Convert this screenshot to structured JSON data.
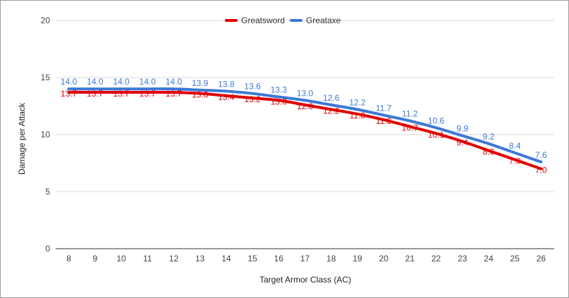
{
  "chart_data": {
    "type": "line",
    "title": "",
    "xlabel": "Target Armor Class (AC)",
    "ylabel": "Damage per Attack",
    "x": [
      8,
      9,
      10,
      11,
      12,
      13,
      14,
      15,
      16,
      17,
      18,
      19,
      20,
      21,
      22,
      23,
      24,
      25,
      26
    ],
    "xlim": [
      7.5,
      26.5
    ],
    "ylim": [
      0,
      20
    ],
    "yticks": [
      0,
      5,
      10,
      15,
      20
    ],
    "grid": true,
    "legend_position": "top-center",
    "series": [
      {
        "name": "Greatsword",
        "color": "#e00000",
        "values": [
          13.7,
          13.7,
          13.7,
          13.7,
          13.7,
          13.6,
          13.4,
          13.2,
          13.0,
          12.6,
          12.2,
          11.8,
          11.3,
          10.7,
          10.1,
          9.4,
          8.6,
          7.8,
          7.0
        ],
        "labels": [
          "13.7",
          "13.7",
          "13.7",
          "13.7",
          "13.7",
          "13.6",
          "13.4",
          "13.2",
          "13.0",
          "12.6",
          "12.2",
          "11.8",
          "11.3",
          "10.7",
          "10.1",
          "9.4",
          "8.6",
          "7.8",
          "7.0"
        ]
      },
      {
        "name": "Greataxe",
        "color": "#3c78d8",
        "values": [
          14.0,
          14.0,
          14.0,
          14.0,
          14.0,
          13.9,
          13.8,
          13.6,
          13.3,
          13.0,
          12.6,
          12.2,
          11.7,
          11.2,
          10.6,
          9.9,
          9.2,
          8.4,
          7.6
        ],
        "labels": [
          "14.0",
          "14.0",
          "14.0",
          "14.0",
          "14.0",
          "13.9",
          "13.8",
          "13.6",
          "13.3",
          "13.0",
          "12.6",
          "12.2",
          "11.7",
          "11.2",
          "10.6",
          "9.9",
          "9.2",
          "8.4",
          "7.6"
        ]
      }
    ]
  }
}
